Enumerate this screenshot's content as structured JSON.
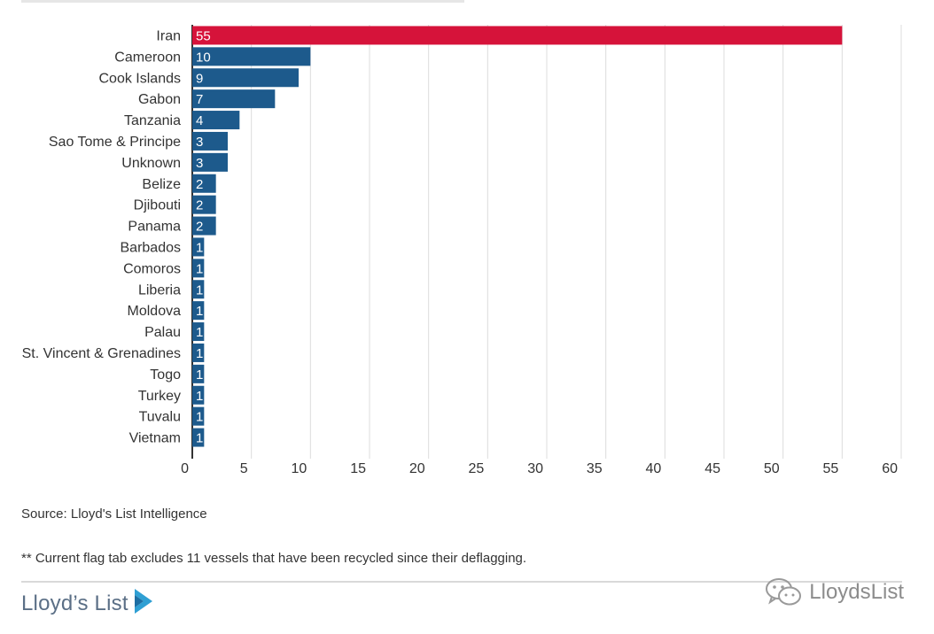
{
  "chart_data": {
    "type": "bar",
    "orientation": "horizontal",
    "categories": [
      "Iran",
      "Cameroon",
      "Cook Islands",
      "Gabon",
      "Tanzania",
      "Sao Tome & Principe",
      "Unknown",
      "Belize",
      "Djibouti",
      "Panama",
      "Barbados",
      "Comoros",
      "Liberia",
      "Moldova",
      "Palau",
      "St. Vincent & Grenadines",
      "Togo",
      "Turkey",
      "Tuvalu",
      "Vietnam"
    ],
    "values": [
      55,
      10,
      9,
      7,
      4,
      3,
      3,
      2,
      2,
      2,
      1,
      1,
      1,
      1,
      1,
      1,
      1,
      1,
      1,
      1
    ],
    "xlim": [
      0,
      60
    ],
    "xticks": [
      0,
      5,
      10,
      15,
      20,
      25,
      30,
      35,
      40,
      45,
      50,
      55,
      60
    ],
    "grid": true,
    "colors": {
      "highlight": "#d6133a",
      "default": "#1d5a8c"
    }
  },
  "source": "Source: Lloyd's List Intelligence",
  "footnote": "** Current flag tab excludes 11 vessels that have been recycled since their deflagging.",
  "brand": {
    "name": "Lloyd’s List",
    "color": "#5b6f86",
    "mark_color": "#2f9fd3"
  },
  "watermark": {
    "text": "LloydsList",
    "icon": "wechat-icon"
  }
}
